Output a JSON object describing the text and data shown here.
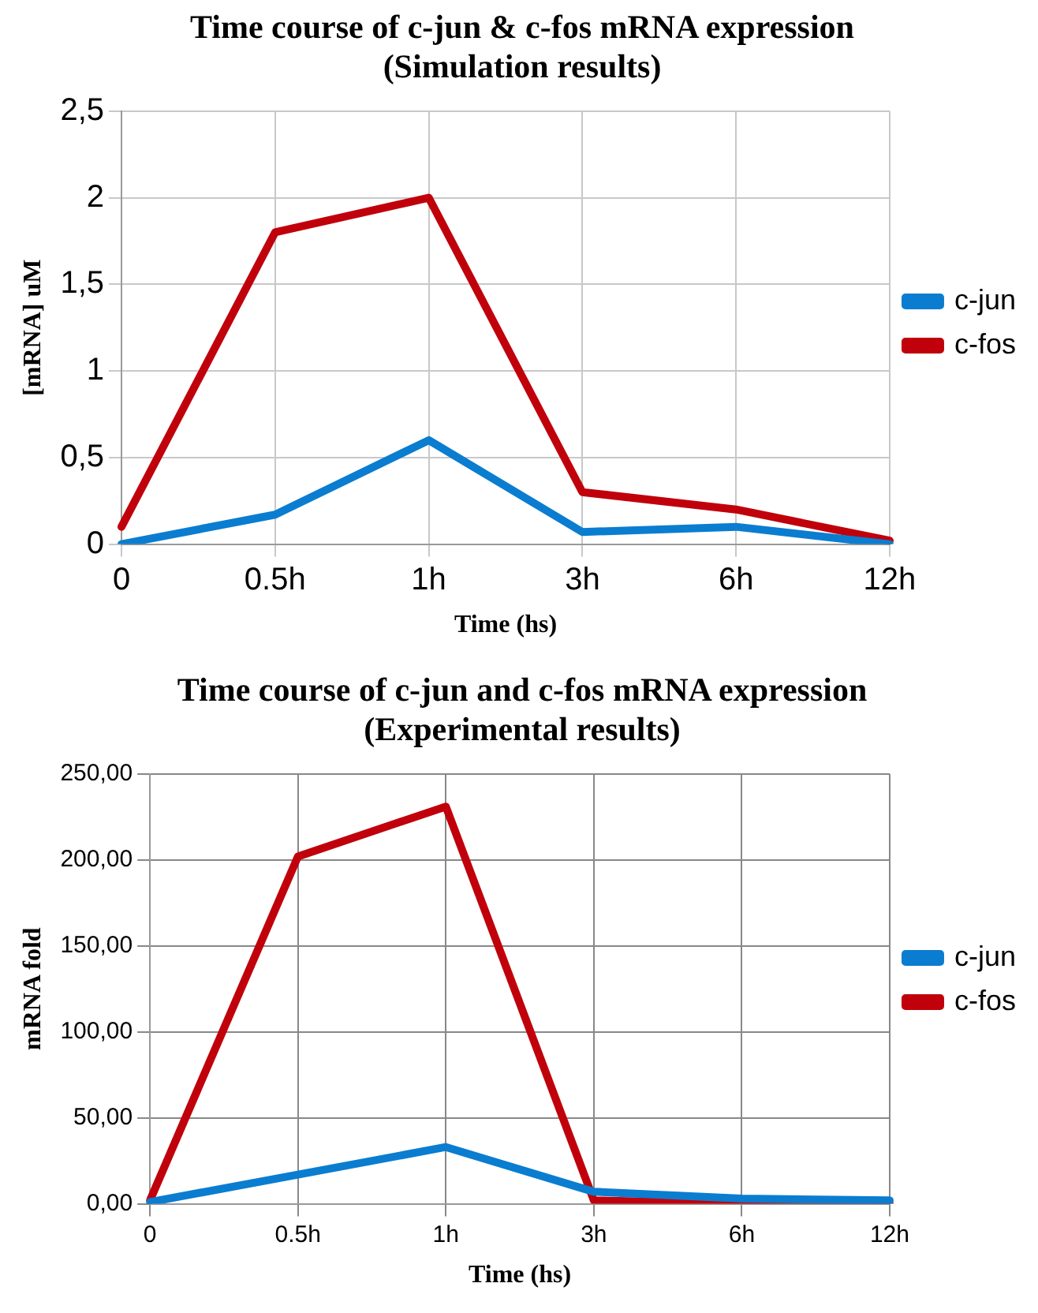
{
  "chart_data": [
    {
      "type": "line",
      "title": "Time course of c-jun & c-fos mRNA expression\n(Simulation results)",
      "xlabel": "Time (hs)",
      "ylabel": "[mRNA] uM",
      "categories": [
        "0",
        "0.5h",
        "1h",
        "3h",
        "6h",
        "12h"
      ],
      "series": [
        {
          "name": "c-jun",
          "color": "#0a7dd0",
          "values": [
            0,
            0.17,
            0.6,
            0.07,
            0.1,
            0
          ]
        },
        {
          "name": "c-fos",
          "color": "#c0000b",
          "values": [
            0.1,
            1.8,
            2.0,
            0.3,
            0.2,
            0.02
          ]
        }
      ],
      "ylim": [
        0,
        2.5
      ],
      "yticks": [
        0,
        {
          "value": 0.5,
          "label": "0,5"
        },
        1,
        {
          "value": 1.5,
          "label": "1,5"
        },
        2,
        {
          "value": 2.5,
          "label": "2,5"
        }
      ],
      "grid": true,
      "legend": "right",
      "marker": "none"
    },
    {
      "type": "line",
      "title": "Time course of c-jun and c-fos mRNA expression\n(Experimental results)",
      "xlabel": "Time (hs)",
      "ylabel": "mRNA fold",
      "categories": [
        "0",
        "0.5h",
        "1h",
        "3h",
        "6h",
        "12h"
      ],
      "series": [
        {
          "name": "c-jun",
          "color": "#0a7dd0",
          "values": [
            1,
            17,
            33,
            7,
            3,
            2
          ]
        },
        {
          "name": "c-fos",
          "color": "#c0000b",
          "values": [
            2,
            202,
            231,
            2,
            0,
            0
          ]
        }
      ],
      "ylim": [
        0,
        250
      ],
      "yticks": [
        {
          "value": 0,
          "label": "0,00"
        },
        {
          "value": 50,
          "label": "50,00"
        },
        {
          "value": 100,
          "label": "100,00"
        },
        {
          "value": 150,
          "label": "150,00"
        },
        {
          "value": 200,
          "label": "200,00"
        },
        {
          "value": 250,
          "label": "250,00"
        }
      ],
      "grid": true,
      "legend": "right",
      "marker": "none"
    }
  ]
}
